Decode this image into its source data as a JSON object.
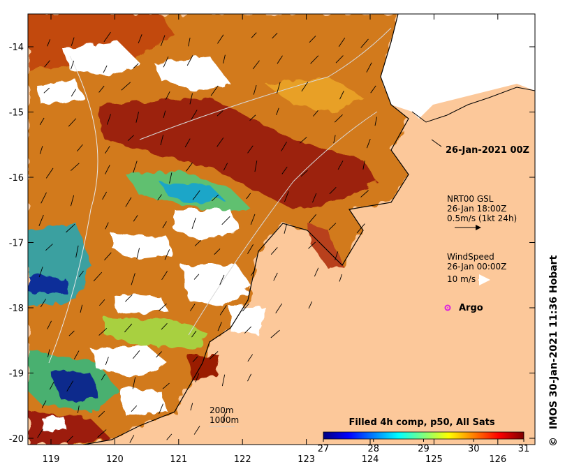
{
  "map": {
    "x_ticks": [
      "119",
      "120",
      "121",
      "122",
      "123",
      "124",
      "125",
      "126"
    ],
    "y_ticks": [
      "-14",
      "-15",
      "-16",
      "-17",
      "-18",
      "-19",
      "-20"
    ],
    "colors": {
      "land": "#fcc89a",
      "coast": "#000000",
      "cloud": "#ffffff"
    }
  },
  "annotations": {
    "date_title": "26-Jan-2021 00Z",
    "current": {
      "line1": "NRT00 GSL",
      "line2": "26-Jan 18:00Z",
      "line3": "0.5m/s (1kt 24h)"
    },
    "wind": {
      "line1": "WindSpeed",
      "line2": "26-Jan 00:00Z",
      "line3": "10 m/s"
    },
    "argo_label": "Argo",
    "argo_color": "#dd22dd"
  },
  "bathymetry": {
    "line1": "200m",
    "line2": "1000m"
  },
  "colorbar": {
    "title": "Filled 4h comp, p50, All Sats",
    "ticks": [
      "27",
      "28",
      "29",
      "30",
      "31"
    ],
    "stops": [
      "#00007f",
      "#0000ff",
      "#007fff",
      "#00ffff",
      "#7fff7f",
      "#ffff00",
      "#ff7f00",
      "#ff0000",
      "#7f0000"
    ]
  },
  "credit": "IMOS 30-Jan-2021 11:36 Hobart",
  "credit_symbol": "©"
}
